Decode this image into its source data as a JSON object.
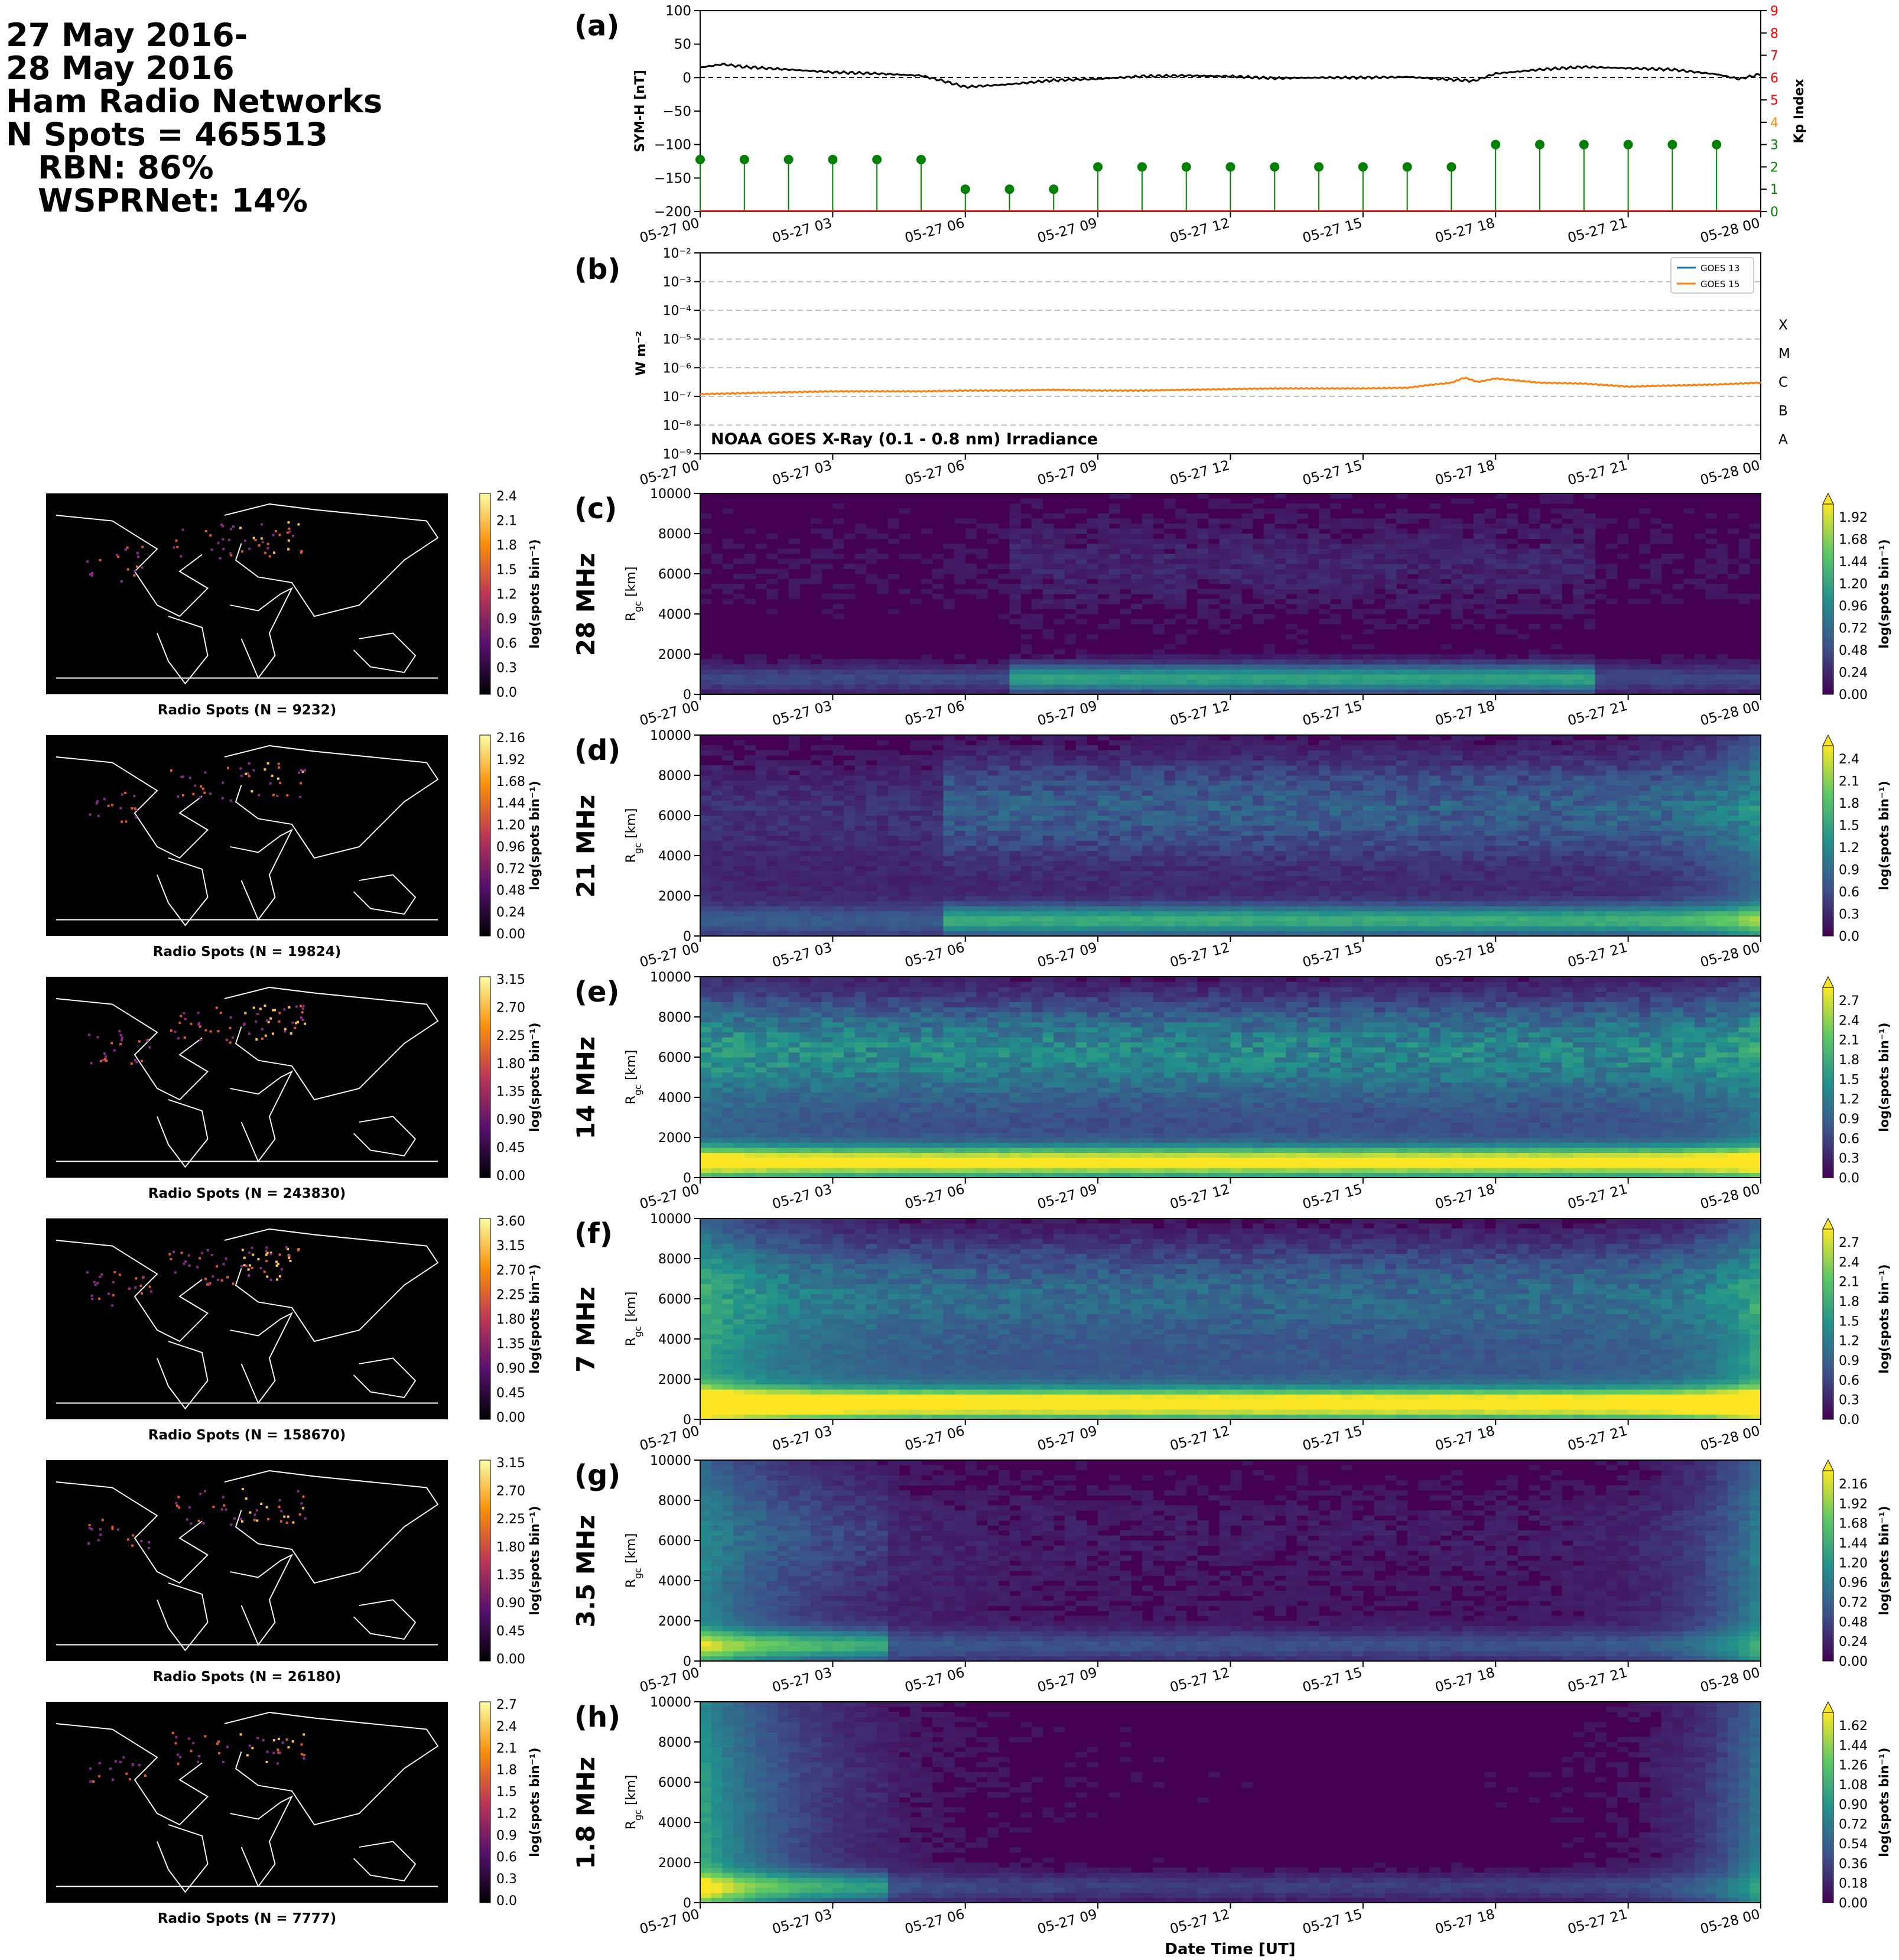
{
  "header": {
    "lines": [
      "27 May 2016-",
      "28 May 2016",
      "Ham Radio Networks",
      "N Spots = 465513",
      "RBN: 86%",
      "WSPRNet: 14%"
    ]
  },
  "time_ticks": [
    "05-27 00",
    "05-27 03",
    "05-27 06",
    "05-27 09",
    "05-27 12",
    "05-27 15",
    "05-27 18",
    "05-27 21",
    "05-28 00"
  ],
  "xlabel": "Date Time [UT]",
  "colors": {
    "symh_line": "#000000",
    "kp_stem": "#008000",
    "kp_tick_low": "#008000",
    "kp_tick_mid": "#ff8c00",
    "kp_tick_high": "#ff0000",
    "goes13": "#1f77b4",
    "goes15": "#ff7f0e"
  },
  "chart_data": [
    {
      "panel": "(a)",
      "type": "line",
      "title": "",
      "ylabel": "SYM-H [nT]",
      "ylim": [
        -200,
        100
      ],
      "yticks": [
        "100",
        "50",
        "0",
        "−50",
        "−100",
        "−150",
        "−200"
      ],
      "series": [
        {
          "x_hours": [
            0,
            0.5,
            1,
            2,
            3,
            4,
            5,
            5.5,
            6,
            7,
            8,
            9,
            10,
            11,
            12,
            13,
            14,
            15,
            16,
            17,
            17.5,
            18,
            19,
            20,
            21,
            22,
            23,
            23.5,
            24
          ],
          "values": [
            15,
            20,
            16,
            12,
            8,
            6,
            3,
            -5,
            -14,
            -10,
            -4,
            -2,
            2,
            3,
            2,
            -1,
            0,
            0,
            1,
            -3,
            -5,
            6,
            12,
            16,
            14,
            12,
            5,
            -2,
            5
          ]
        }
      ],
      "y2label": "Kp Index",
      "y2lim": [
        0,
        9
      ],
      "y2ticks": [
        "0",
        "1",
        "2",
        "3",
        "4",
        "5",
        "6",
        "7",
        "8",
        "9"
      ],
      "kp_stems": {
        "x_hours": [
          0,
          1,
          2,
          3,
          4,
          5,
          6,
          7,
          8,
          9,
          10,
          11,
          12,
          13,
          14,
          15,
          16,
          17,
          18,
          19,
          20,
          21,
          22,
          23
        ],
        "values": [
          2.33,
          2.33,
          2.33,
          2.33,
          2.33,
          2.33,
          1,
          1,
          1,
          2,
          2,
          2,
          2,
          2,
          2,
          2,
          2,
          2,
          3,
          3,
          3,
          3,
          3,
          3
        ]
      }
    },
    {
      "panel": "(b)",
      "type": "line",
      "title": "NOAA GOES X-Ray (0.1 - 0.8 nm) Irradiance",
      "ylabel": "W m⁻²",
      "yscale": "log",
      "ylim": [
        1e-09,
        0.01
      ],
      "yticks": [
        "10⁻²",
        "10⁻³",
        "10⁻⁴",
        "10⁻⁵",
        "10⁻⁶",
        "10⁻⁷",
        "10⁻⁸",
        "10⁻⁹"
      ],
      "flare_classes": [
        "X",
        "M",
        "C",
        "B",
        "A"
      ],
      "legend": [
        "GOES 13",
        "GOES 15"
      ],
      "series": [
        {
          "name": "GOES 15",
          "x_hours": [
            0,
            1,
            2,
            3,
            4,
            5,
            6,
            7,
            8,
            9,
            10,
            11,
            12,
            13,
            14,
            15,
            16,
            16.5,
            17,
            17.3,
            17.6,
            18,
            19,
            20,
            21,
            22,
            23,
            24
          ],
          "values": [
            1.2e-07,
            1.3e-07,
            1.4e-07,
            1.5e-07,
            1.5e-07,
            1.5e-07,
            1.6e-07,
            1.6e-07,
            1.7e-07,
            1.6e-07,
            1.6e-07,
            1.7e-07,
            1.8e-07,
            1.9e-07,
            1.9e-07,
            1.9e-07,
            2e-07,
            2.5e-07,
            3e-07,
            4.5e-07,
            3.2e-07,
            4.2e-07,
            3e-07,
            2.8e-07,
            2.2e-07,
            2.4e-07,
            2.6e-07,
            3e-07
          ]
        }
      ]
    },
    {
      "panel": "(c)",
      "type": "heatmap",
      "band": "28 MHz",
      "ylabel": "R_gc [km]",
      "ylim": [
        0,
        10000
      ],
      "yticks": [
        "10000",
        "8000",
        "6000",
        "4000",
        "2000",
        "0"
      ],
      "colorbar_ticks": [
        "1.92",
        "1.68",
        "1.44",
        "1.20",
        "0.96",
        "0.72",
        "0.48",
        "0.24",
        "0.00"
      ],
      "colorbar_label": "log(spots bin⁻¹)",
      "map_colorbar_ticks": [
        "2.4",
        "2.1",
        "1.8",
        "1.5",
        "1.2",
        "0.9",
        "0.6",
        "0.3",
        "0.0"
      ],
      "map_label": "Radio Spots (N = 9232)",
      "vmax": 2.0,
      "intensity": 0.55,
      "far": 0.12,
      "dawn": [
        7,
        20
      ],
      "start_rise": 0.0,
      "end_rise": 0.0,
      "low_bias": 0.0
    },
    {
      "panel": "(d)",
      "type": "heatmap",
      "band": "21 MHz",
      "ylabel": "R_gc [km]",
      "ylim": [
        0,
        10000
      ],
      "yticks": [
        "10000",
        "8000",
        "6000",
        "4000",
        "2000",
        "0"
      ],
      "colorbar_ticks": [
        "2.4",
        "2.1",
        "1.8",
        "1.5",
        "1.2",
        "0.9",
        "0.6",
        "0.3",
        "0.0"
      ],
      "colorbar_label": "log(spots bin⁻¹)",
      "map_colorbar_ticks": [
        "2.16",
        "1.92",
        "1.68",
        "1.44",
        "1.20",
        "0.96",
        "0.72",
        "0.48",
        "0.24",
        "0.00"
      ],
      "map_label": "Radio Spots (N = 19824)",
      "vmax": 2.5,
      "intensity": 0.5,
      "far": 0.35,
      "dawn": [
        5.5,
        24
      ],
      "start_rise": 0.0,
      "end_rise": 0.3,
      "low_bias": 0.1
    },
    {
      "panel": "(e)",
      "type": "heatmap",
      "band": "14 MHz",
      "ylabel": "R_gc [km]",
      "ylim": [
        0,
        10000
      ],
      "yticks": [
        "10000",
        "8000",
        "6000",
        "4000",
        "2000",
        "0"
      ],
      "colorbar_ticks": [
        "2.7",
        "2.4",
        "2.1",
        "1.8",
        "1.5",
        "1.2",
        "0.9",
        "0.6",
        "0.3",
        "0.0"
      ],
      "colorbar_label": "log(spots bin⁻¹)",
      "map_colorbar_ticks": [
        "3.15",
        "2.70",
        "2.25",
        "1.80",
        "1.35",
        "0.90",
        "0.45",
        "0.00"
      ],
      "map_label": "Radio Spots (N = 243830)",
      "vmax": 2.8,
      "intensity": 0.8,
      "far": 0.5,
      "dawn": [
        0,
        24
      ],
      "start_rise": 0.1,
      "end_rise": 0.2,
      "low_bias": 0.25
    },
    {
      "panel": "(f)",
      "type": "heatmap",
      "band": "7 MHz",
      "ylabel": "R_gc [km]",
      "ylim": [
        0,
        10000
      ],
      "yticks": [
        "10000",
        "8000",
        "6000",
        "4000",
        "2000",
        "0"
      ],
      "colorbar_ticks": [
        "2.7",
        "2.4",
        "2.1",
        "1.8",
        "1.5",
        "1.2",
        "0.9",
        "0.6",
        "0.3",
        "0.0"
      ],
      "colorbar_label": "log(spots bin⁻¹)",
      "map_colorbar_ticks": [
        "3.60",
        "3.15",
        "2.70",
        "2.25",
        "1.80",
        "1.35",
        "0.90",
        "0.45",
        "0.00"
      ],
      "map_label": "Radio Spots (N = 158670)",
      "vmax": 2.8,
      "intensity": 0.85,
      "far": 0.3,
      "dawn": [
        0,
        24
      ],
      "start_rise": 0.35,
      "end_rise": 0.4,
      "low_bias": 0.3
    },
    {
      "panel": "(g)",
      "type": "heatmap",
      "band": "3.5 MHz",
      "ylabel": "R_gc [km]",
      "ylim": [
        0,
        10000
      ],
      "yticks": [
        "10000",
        "8000",
        "6000",
        "4000",
        "2000",
        "0"
      ],
      "colorbar_ticks": [
        "2.16",
        "1.92",
        "1.68",
        "1.44",
        "1.20",
        "0.96",
        "0.72",
        "0.48",
        "0.24",
        "0.00"
      ],
      "colorbar_label": "log(spots bin⁻¹)",
      "map_colorbar_ticks": [
        "3.15",
        "2.70",
        "2.25",
        "1.80",
        "1.35",
        "0.90",
        "0.45",
        "0.00"
      ],
      "map_label": "Radio Spots (N = 26180)",
      "vmax": 2.2,
      "intensity": 0.5,
      "far": 0.15,
      "dawn": [
        0,
        4
      ],
      "start_rise": 0.4,
      "end_rise": 0.5,
      "low_bias": 0.05
    },
    {
      "panel": "(h)",
      "type": "heatmap",
      "band": "1.8 MHz",
      "ylabel": "R_gc [km]",
      "ylim": [
        0,
        10000
      ],
      "yticks": [
        "10000",
        "8000",
        "6000",
        "4000",
        "2000",
        "0"
      ],
      "colorbar_ticks": [
        "1.62",
        "1.44",
        "1.26",
        "1.08",
        "0.90",
        "0.72",
        "0.54",
        "0.36",
        "0.18",
        "0.00"
      ],
      "colorbar_label": "log(spots bin⁻¹)",
      "map_colorbar_ticks": [
        "2.7",
        "2.4",
        "2.1",
        "1.8",
        "1.5",
        "1.2",
        "0.9",
        "0.6",
        "0.3",
        "0.0"
      ],
      "map_label": "Radio Spots (N = 7777)",
      "vmax": 1.7,
      "intensity": 0.45,
      "far": 0.03,
      "dawn": [
        0,
        4
      ],
      "start_rise": 0.6,
      "end_rise": 0.5,
      "low_bias": 0.0
    }
  ]
}
